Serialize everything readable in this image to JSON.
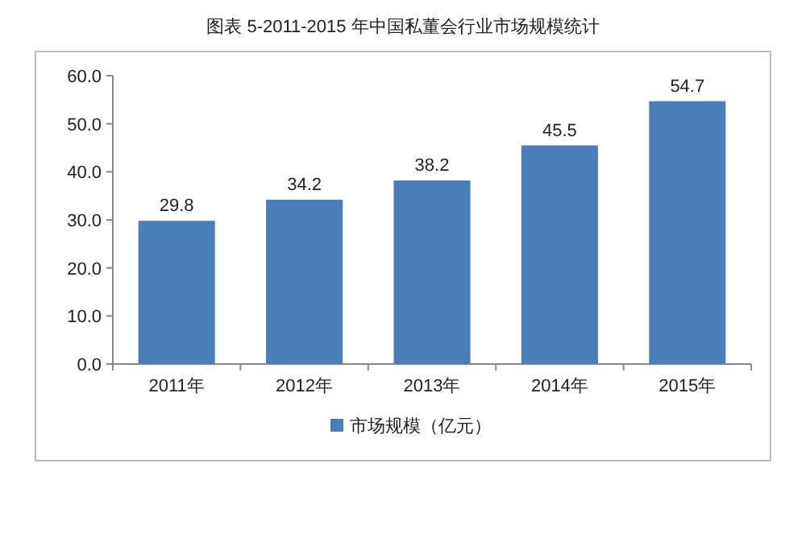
{
  "chart_data": {
    "type": "bar",
    "title": "图表 5-2011-2015 年中国私董会行业市场规模统计",
    "categories": [
      "2011年",
      "2012年",
      "2013年",
      "2014年",
      "2015年"
    ],
    "series": [
      {
        "name": "市场规模（亿元）",
        "color": "#4a7ebb",
        "values": [
          29.8,
          34.2,
          38.2,
          45.5,
          54.7
        ]
      }
    ],
    "ylim": [
      0,
      60
    ],
    "yticks": [
      {
        "value": 0,
        "label": "0.0"
      },
      {
        "value": 10,
        "label": "10.0"
      },
      {
        "value": 20,
        "label": "20.0"
      },
      {
        "value": 30,
        "label": "30.0"
      },
      {
        "value": 40,
        "label": "40.0"
      },
      {
        "value": 50,
        "label": "50.0"
      },
      {
        "value": 60,
        "label": "60.0"
      }
    ],
    "data_labels": true,
    "legend": "bottom",
    "grid": false
  }
}
